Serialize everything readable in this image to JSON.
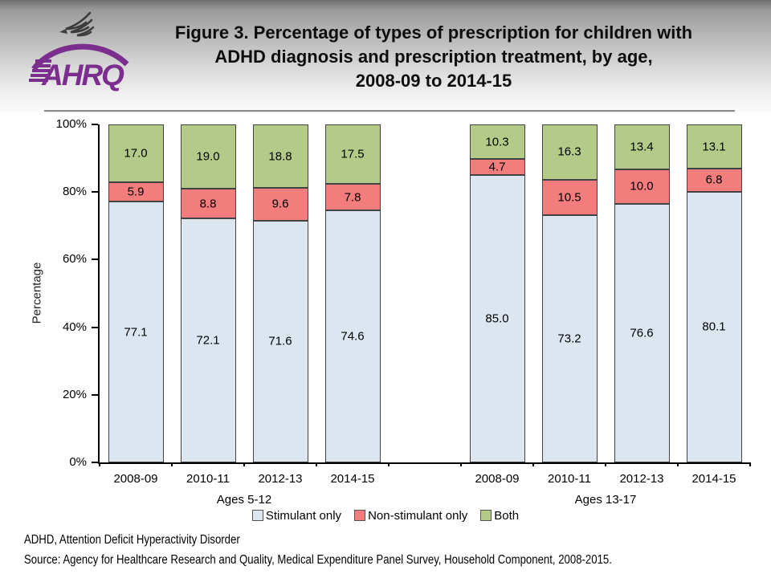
{
  "header": {
    "logo_text": "AHRQ",
    "title_lines": [
      "Figure 3. Percentage of types of prescription for children with",
      "ADHD diagnosis and prescription treatment, by age,",
      "2008-09 to 2014-15"
    ]
  },
  "chart_data": {
    "type": "bar",
    "stacked": true,
    "title": "Figure 3. Percentage of types of prescription for children with ADHD diagnosis and prescription treatment, by age, 2008-09 to 2014-15",
    "xlabel": "",
    "ylabel": "Percentage",
    "ylim": [
      0,
      100
    ],
    "yticks": [
      "0%",
      "20%",
      "40%",
      "60%",
      "80%",
      "100%"
    ],
    "grid": false,
    "legend_position": "bottom",
    "groups": [
      {
        "label": "Ages 5-12",
        "categories": [
          "2008-09",
          "2010-11",
          "2012-13",
          "2014-15"
        ],
        "series": [
          {
            "name": "Stimulant only",
            "values": [
              77.1,
              72.1,
              71.6,
              74.6
            ]
          },
          {
            "name": "Non-stimulant only",
            "values": [
              5.9,
              8.8,
              9.6,
              7.8
            ]
          },
          {
            "name": "Both",
            "values": [
              17.0,
              19.0,
              18.8,
              17.5
            ]
          }
        ]
      },
      {
        "label": "Ages 13-17",
        "categories": [
          "2008-09",
          "2010-11",
          "2012-13",
          "2014-15"
        ],
        "series": [
          {
            "name": "Stimulant only",
            "values": [
              85.0,
              73.2,
              76.6,
              80.1
            ]
          },
          {
            "name": "Non-stimulant only",
            "values": [
              4.7,
              10.5,
              10.0,
              6.8
            ]
          },
          {
            "name": "Both",
            "values": [
              10.3,
              16.3,
              13.4,
              13.1
            ]
          }
        ]
      }
    ],
    "legend": [
      {
        "label": "Stimulant only",
        "color": "#dce6f1"
      },
      {
        "label": "Non-stimulant only",
        "color": "#f37d7d"
      },
      {
        "label": "Both",
        "color": "#b4ca88"
      }
    ],
    "colors": {
      "accent_purple": "#7b2e8d",
      "axis": "#000000",
      "segment_border": "#424242"
    }
  },
  "footer": {
    "line1": "ADHD, Attention Deficit Hyperactivity Disorder",
    "line2": "Source: Agency for Healthcare Research and Quality, Medical Expenditure Panel Survey, Household Component, 2008-2015."
  }
}
